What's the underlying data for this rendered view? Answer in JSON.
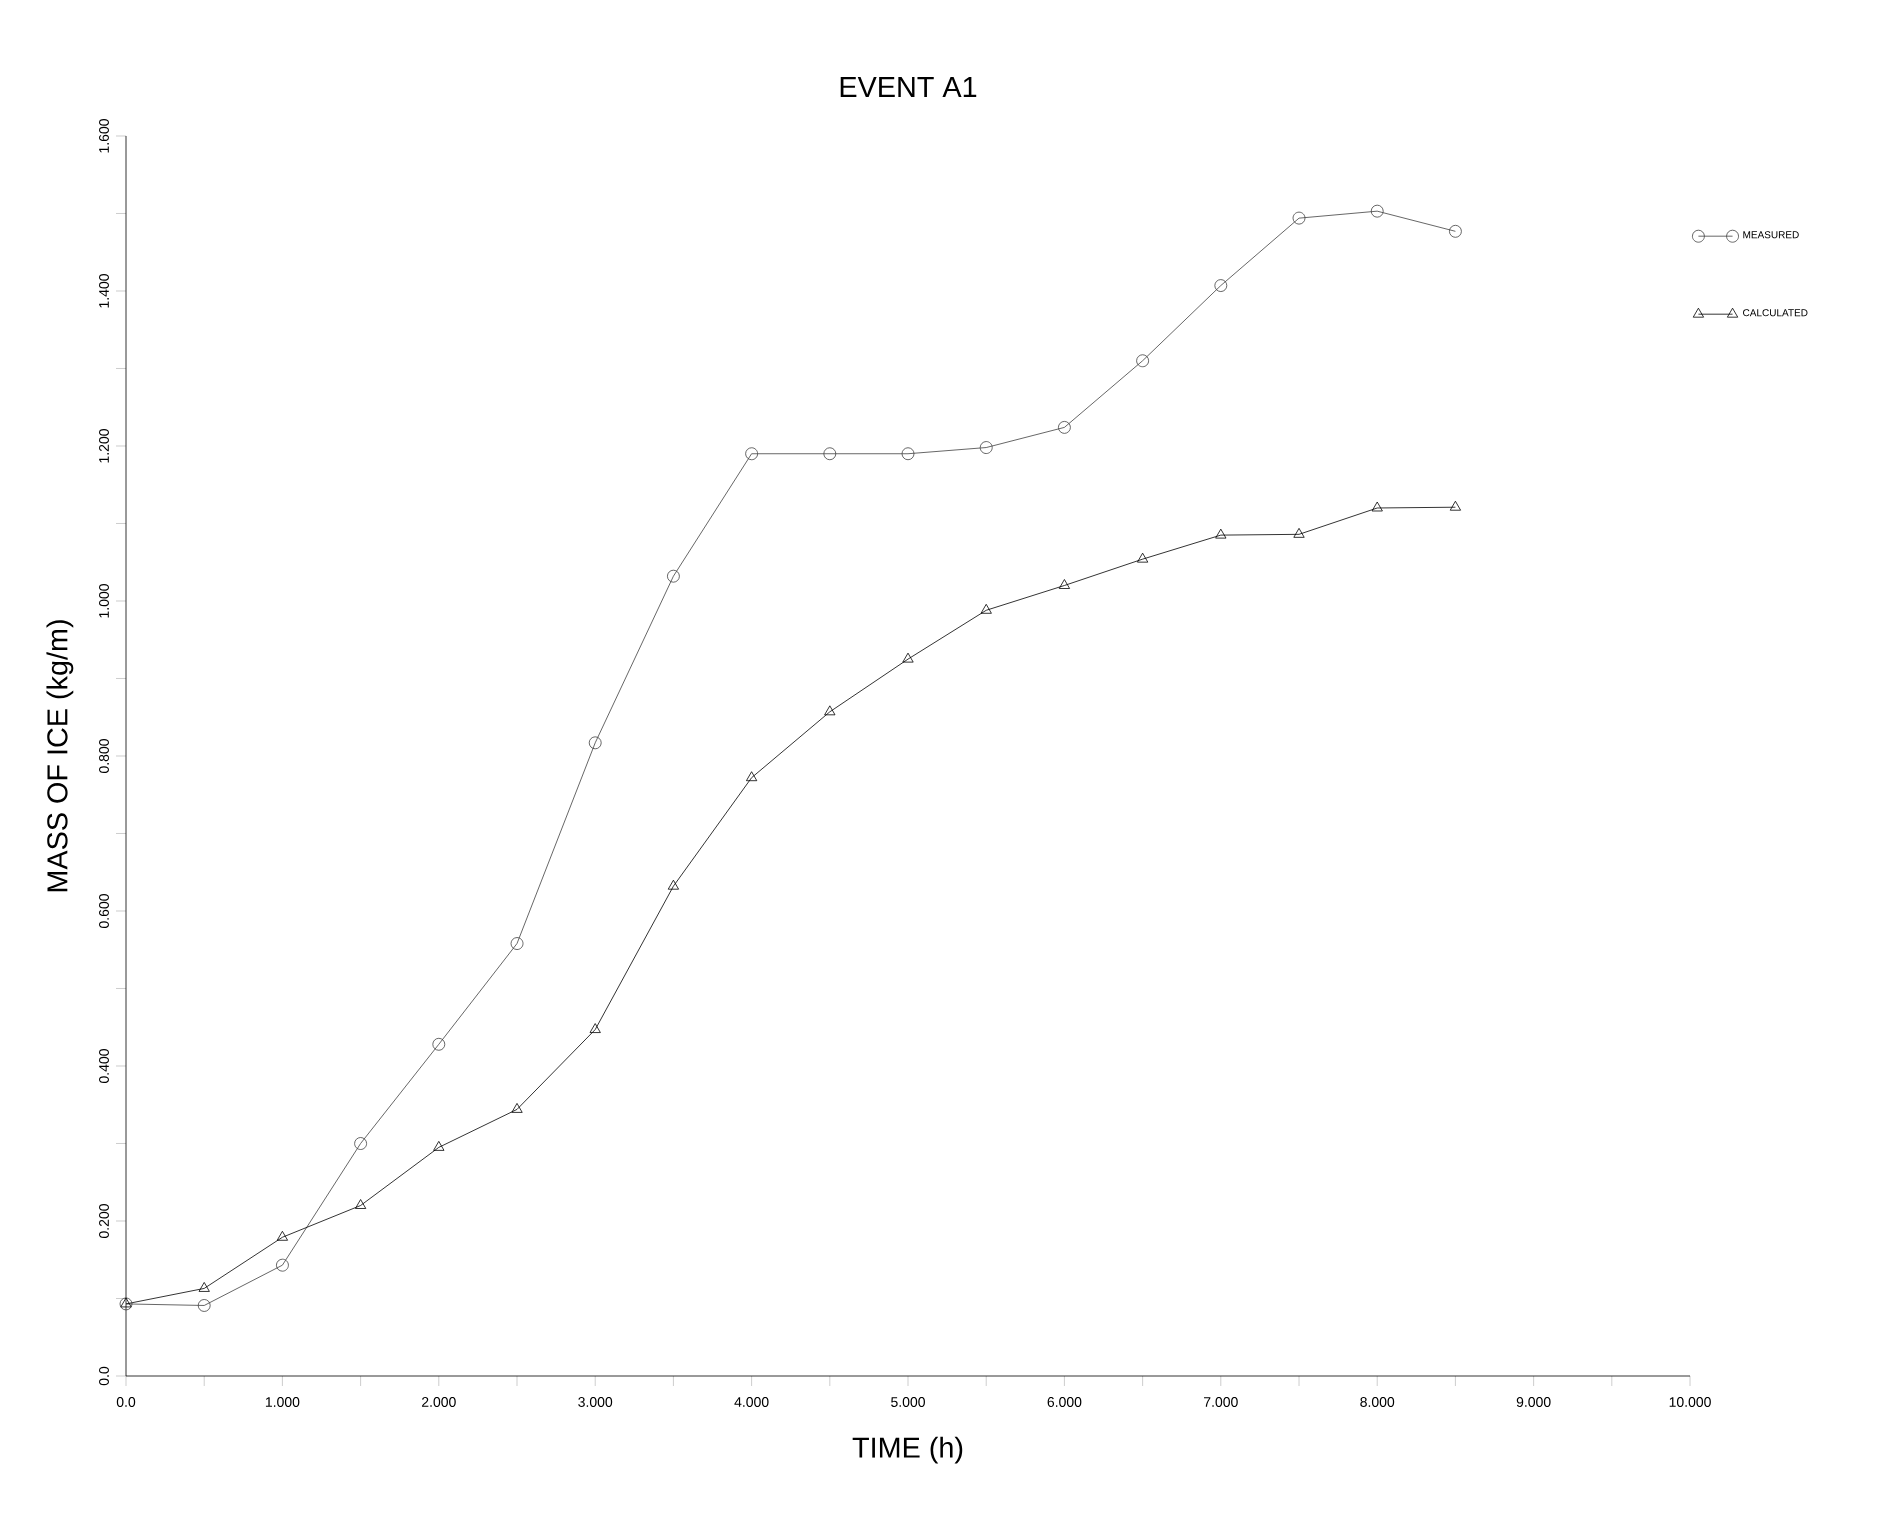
{
  "chart_data": {
    "type": "line",
    "title": "EVENT A1",
    "xlabel": "TIME (h)",
    "ylabel": "MASS OF ICE (kg/m)",
    "x": [
      0,
      0.5,
      1,
      1.5,
      2,
      2.5,
      3,
      3.5,
      4,
      4.5,
      5,
      5.5,
      6,
      6.5,
      7,
      7.5,
      8,
      8.5
    ],
    "series": [
      {
        "name": "MEASURED",
        "color": "#404040",
        "marker": "circle",
        "values": [
          0.093,
          0.091,
          0.143,
          0.3,
          0.428,
          0.558,
          0.817,
          1.032,
          1.19,
          1.19,
          1.19,
          1.198,
          1.224,
          1.31,
          1.407,
          1.494,
          1.503,
          1.477
        ]
      },
      {
        "name": "CALCULATED",
        "color": "#000000",
        "marker": "triangle",
        "values": [
          0.093,
          0.113,
          0.179,
          0.22,
          0.295,
          0.344,
          0.447,
          0.632,
          0.772,
          0.857,
          0.925,
          0.988,
          1.02,
          1.054,
          1.085,
          1.086,
          1.12,
          1.121
        ]
      }
    ],
    "xlim": [
      0,
      10
    ],
    "ylim": [
      0,
      1.6
    ],
    "xticks": [
      {
        "value": 0,
        "label": "0.0"
      },
      {
        "value": 0.5,
        "label": null
      },
      {
        "value": 1,
        "label": "1.000"
      },
      {
        "value": 1.5,
        "label": null
      },
      {
        "value": 2,
        "label": "2.000"
      },
      {
        "value": 2.5,
        "label": null
      },
      {
        "value": 3,
        "label": "3.000"
      },
      {
        "value": 3.5,
        "label": null
      },
      {
        "value": 4,
        "label": "4.000"
      },
      {
        "value": 4.5,
        "label": null
      },
      {
        "value": 5,
        "label": "5.000"
      },
      {
        "value": 5.5,
        "label": null
      },
      {
        "value": 6,
        "label": "6.000"
      },
      {
        "value": 6.5,
        "label": null
      },
      {
        "value": 7,
        "label": "7.000"
      },
      {
        "value": 7.5,
        "label": null
      },
      {
        "value": 8,
        "label": "8.000"
      },
      {
        "value": 8.5,
        "label": null
      },
      {
        "value": 9,
        "label": "9.000"
      },
      {
        "value": 9.5,
        "label": null
      },
      {
        "value": 10,
        "label": "10.000"
      }
    ],
    "yticks": [
      {
        "value": 0,
        "label": "0.0"
      },
      {
        "value": 0.1,
        "label": null
      },
      {
        "value": 0.2,
        "label": "0.200"
      },
      {
        "value": 0.3,
        "label": null
      },
      {
        "value": 0.4,
        "label": "0.400"
      },
      {
        "value": 0.5,
        "label": null
      },
      {
        "value": 0.6,
        "label": "0.600"
      },
      {
        "value": 0.7,
        "label": null
      },
      {
        "value": 0.8,
        "label": "0.800"
      },
      {
        "value": 0.9,
        "label": null
      },
      {
        "value": 1.0,
        "label": "1.000"
      },
      {
        "value": 1.1,
        "label": null
      },
      {
        "value": 1.2,
        "label": "1.200"
      },
      {
        "value": 1.3,
        "label": null
      },
      {
        "value": 1.4,
        "label": "1.400"
      },
      {
        "value": 1.5,
        "label": null
      },
      {
        "value": 1.6,
        "label": "1.600"
      }
    ],
    "grid": false,
    "legend": "top right",
    "line_style": "solid"
  }
}
